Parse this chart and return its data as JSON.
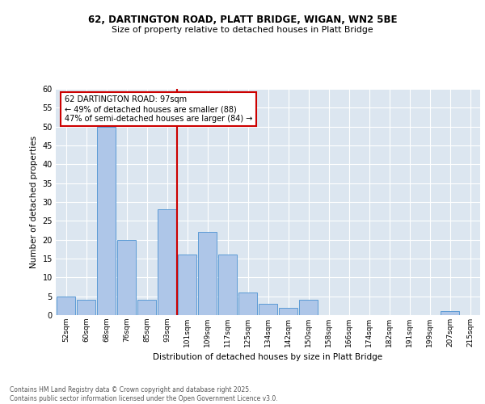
{
  "title1": "62, DARTINGTON ROAD, PLATT BRIDGE, WIGAN, WN2 5BE",
  "title2": "Size of property relative to detached houses in Platt Bridge",
  "xlabel": "Distribution of detached houses by size in Platt Bridge",
  "ylabel": "Number of detached properties",
  "categories": [
    "52sqm",
    "60sqm",
    "68sqm",
    "76sqm",
    "85sqm",
    "93sqm",
    "101sqm",
    "109sqm",
    "117sqm",
    "125sqm",
    "134sqm",
    "142sqm",
    "150sqm",
    "158sqm",
    "166sqm",
    "174sqm",
    "182sqm",
    "191sqm",
    "199sqm",
    "207sqm",
    "215sqm"
  ],
  "values": [
    5,
    4,
    50,
    20,
    4,
    28,
    16,
    22,
    16,
    6,
    3,
    2,
    4,
    0,
    0,
    0,
    0,
    0,
    0,
    1,
    0
  ],
  "bar_color": "#aec6e8",
  "bar_edge_color": "#5b9bd5",
  "vline_color": "#cc0000",
  "annotation_text": "62 DARTINGTON ROAD: 97sqm\n← 49% of detached houses are smaller (88)\n47% of semi-detached houses are larger (84) →",
  "annotation_box_color": "#ffffff",
  "annotation_box_edge": "#cc0000",
  "background_color": "#dce6f0",
  "footer_text": "Contains HM Land Registry data © Crown copyright and database right 2025.\nContains public sector information licensed under the Open Government Licence v3.0.",
  "ylim": [
    0,
    60
  ],
  "yticks": [
    0,
    5,
    10,
    15,
    20,
    25,
    30,
    35,
    40,
    45,
    50,
    55,
    60
  ],
  "fig_width": 6.0,
  "fig_height": 5.0,
  "dpi": 100
}
